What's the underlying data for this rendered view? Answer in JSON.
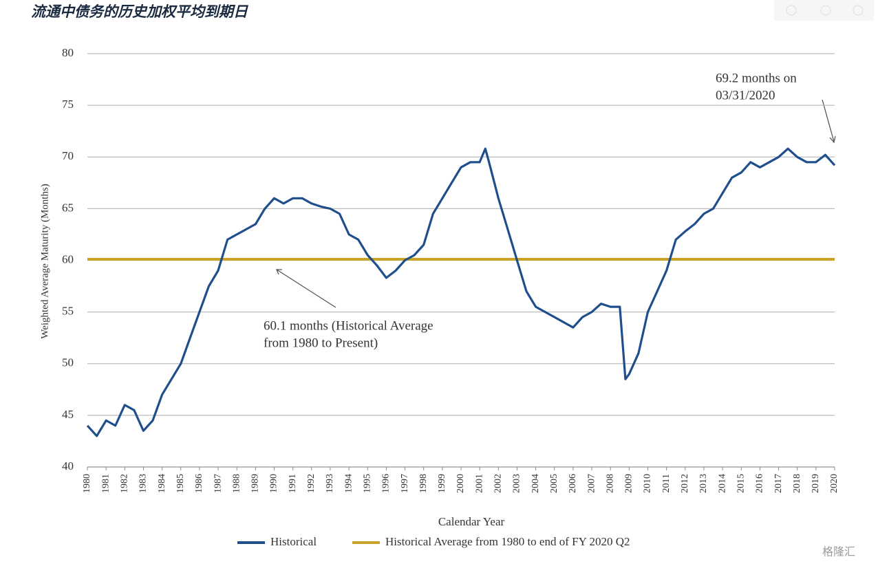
{
  "chart_data": {
    "type": "line",
    "title": "流通中债务的历史加权平均到期日",
    "xlabel": "Calendar Year",
    "ylabel": "Weighted Average Maturity (Months)",
    "x": [
      1980,
      1980.5,
      1981,
      1981.5,
      1982,
      1982.5,
      1983,
      1983.5,
      1984,
      1984.5,
      1985,
      1985.5,
      1986,
      1986.5,
      1987,
      1987.5,
      1988,
      1988.5,
      1989,
      1989.5,
      1990,
      1990.5,
      1991,
      1991.5,
      1992,
      1992.5,
      1993,
      1993.5,
      1994,
      1994.5,
      1995,
      1995.5,
      1996,
      1996.5,
      1997,
      1997.5,
      1998,
      1998.5,
      1999,
      1999.5,
      2000,
      2000.5,
      2001,
      2001.3,
      2001.5,
      2002,
      2002.5,
      2003,
      2003.5,
      2004,
      2004.5,
      2005,
      2005.5,
      2006,
      2006.5,
      2007,
      2007.5,
      2008,
      2008.5,
      2008.8,
      2009,
      2009.5,
      2010,
      2010.5,
      2011,
      2011.5,
      2012,
      2012.5,
      2013,
      2013.5,
      2014,
      2014.5,
      2015,
      2015.5,
      2016,
      2016.5,
      2017,
      2017.5,
      2018,
      2018.5,
      2019,
      2019.5,
      2020
    ],
    "series": [
      {
        "name": "Historical",
        "color": "#1f4e8c",
        "values": [
          44,
          43,
          44.5,
          44,
          46,
          45.5,
          43.5,
          44.5,
          47,
          48.5,
          50,
          52.5,
          55,
          57.5,
          59,
          62,
          62.5,
          63,
          63.5,
          65,
          66,
          65.5,
          66,
          66,
          65.5,
          65.2,
          65,
          64.5,
          62.5,
          62,
          60.5,
          59.5,
          58.3,
          59,
          60,
          60.5,
          61.5,
          64.5,
          66,
          67.5,
          69,
          69.5,
          69.5,
          70.8,
          69.5,
          66,
          63,
          60,
          57,
          55.5,
          55,
          54.5,
          54,
          53.5,
          54.5,
          55,
          55.8,
          55.5,
          55.5,
          48.5,
          49,
          51,
          55,
          57,
          59,
          62,
          62.8,
          63.5,
          64.5,
          65,
          66.5,
          68,
          68.5,
          69.5,
          69,
          69.5,
          70,
          70.8,
          70,
          69.5,
          69.5,
          70.2,
          69.2
        ]
      }
    ],
    "reference_line": {
      "name": "Historical Average from 1980 to end of FY 2020 Q2",
      "value": 60.1,
      "color": "#c9a227"
    },
    "annotations": [
      {
        "lines": [
          "69.2 months on",
          "03/31/2020"
        ]
      },
      {
        "lines": [
          "60.1 months (Historical Average",
          "from 1980 to Present)"
        ]
      }
    ],
    "xlim": [
      1980,
      2020
    ],
    "xticks": [
      1980,
      1981,
      1982,
      1983,
      1984,
      1985,
      1986,
      1987,
      1988,
      1989,
      1990,
      1991,
      1992,
      1993,
      1994,
      1995,
      1996,
      1997,
      1998,
      1999,
      2000,
      2001,
      2002,
      2003,
      2004,
      2005,
      2006,
      2007,
      2008,
      2009,
      2010,
      2011,
      2012,
      2013,
      2014,
      2015,
      2016,
      2017,
      2018,
      2019,
      2020
    ],
    "ylim": [
      40,
      80
    ],
    "yticks": [
      40,
      45,
      50,
      55,
      60,
      65,
      70,
      75,
      80
    ],
    "grid": true,
    "watermark": "格隆汇"
  }
}
